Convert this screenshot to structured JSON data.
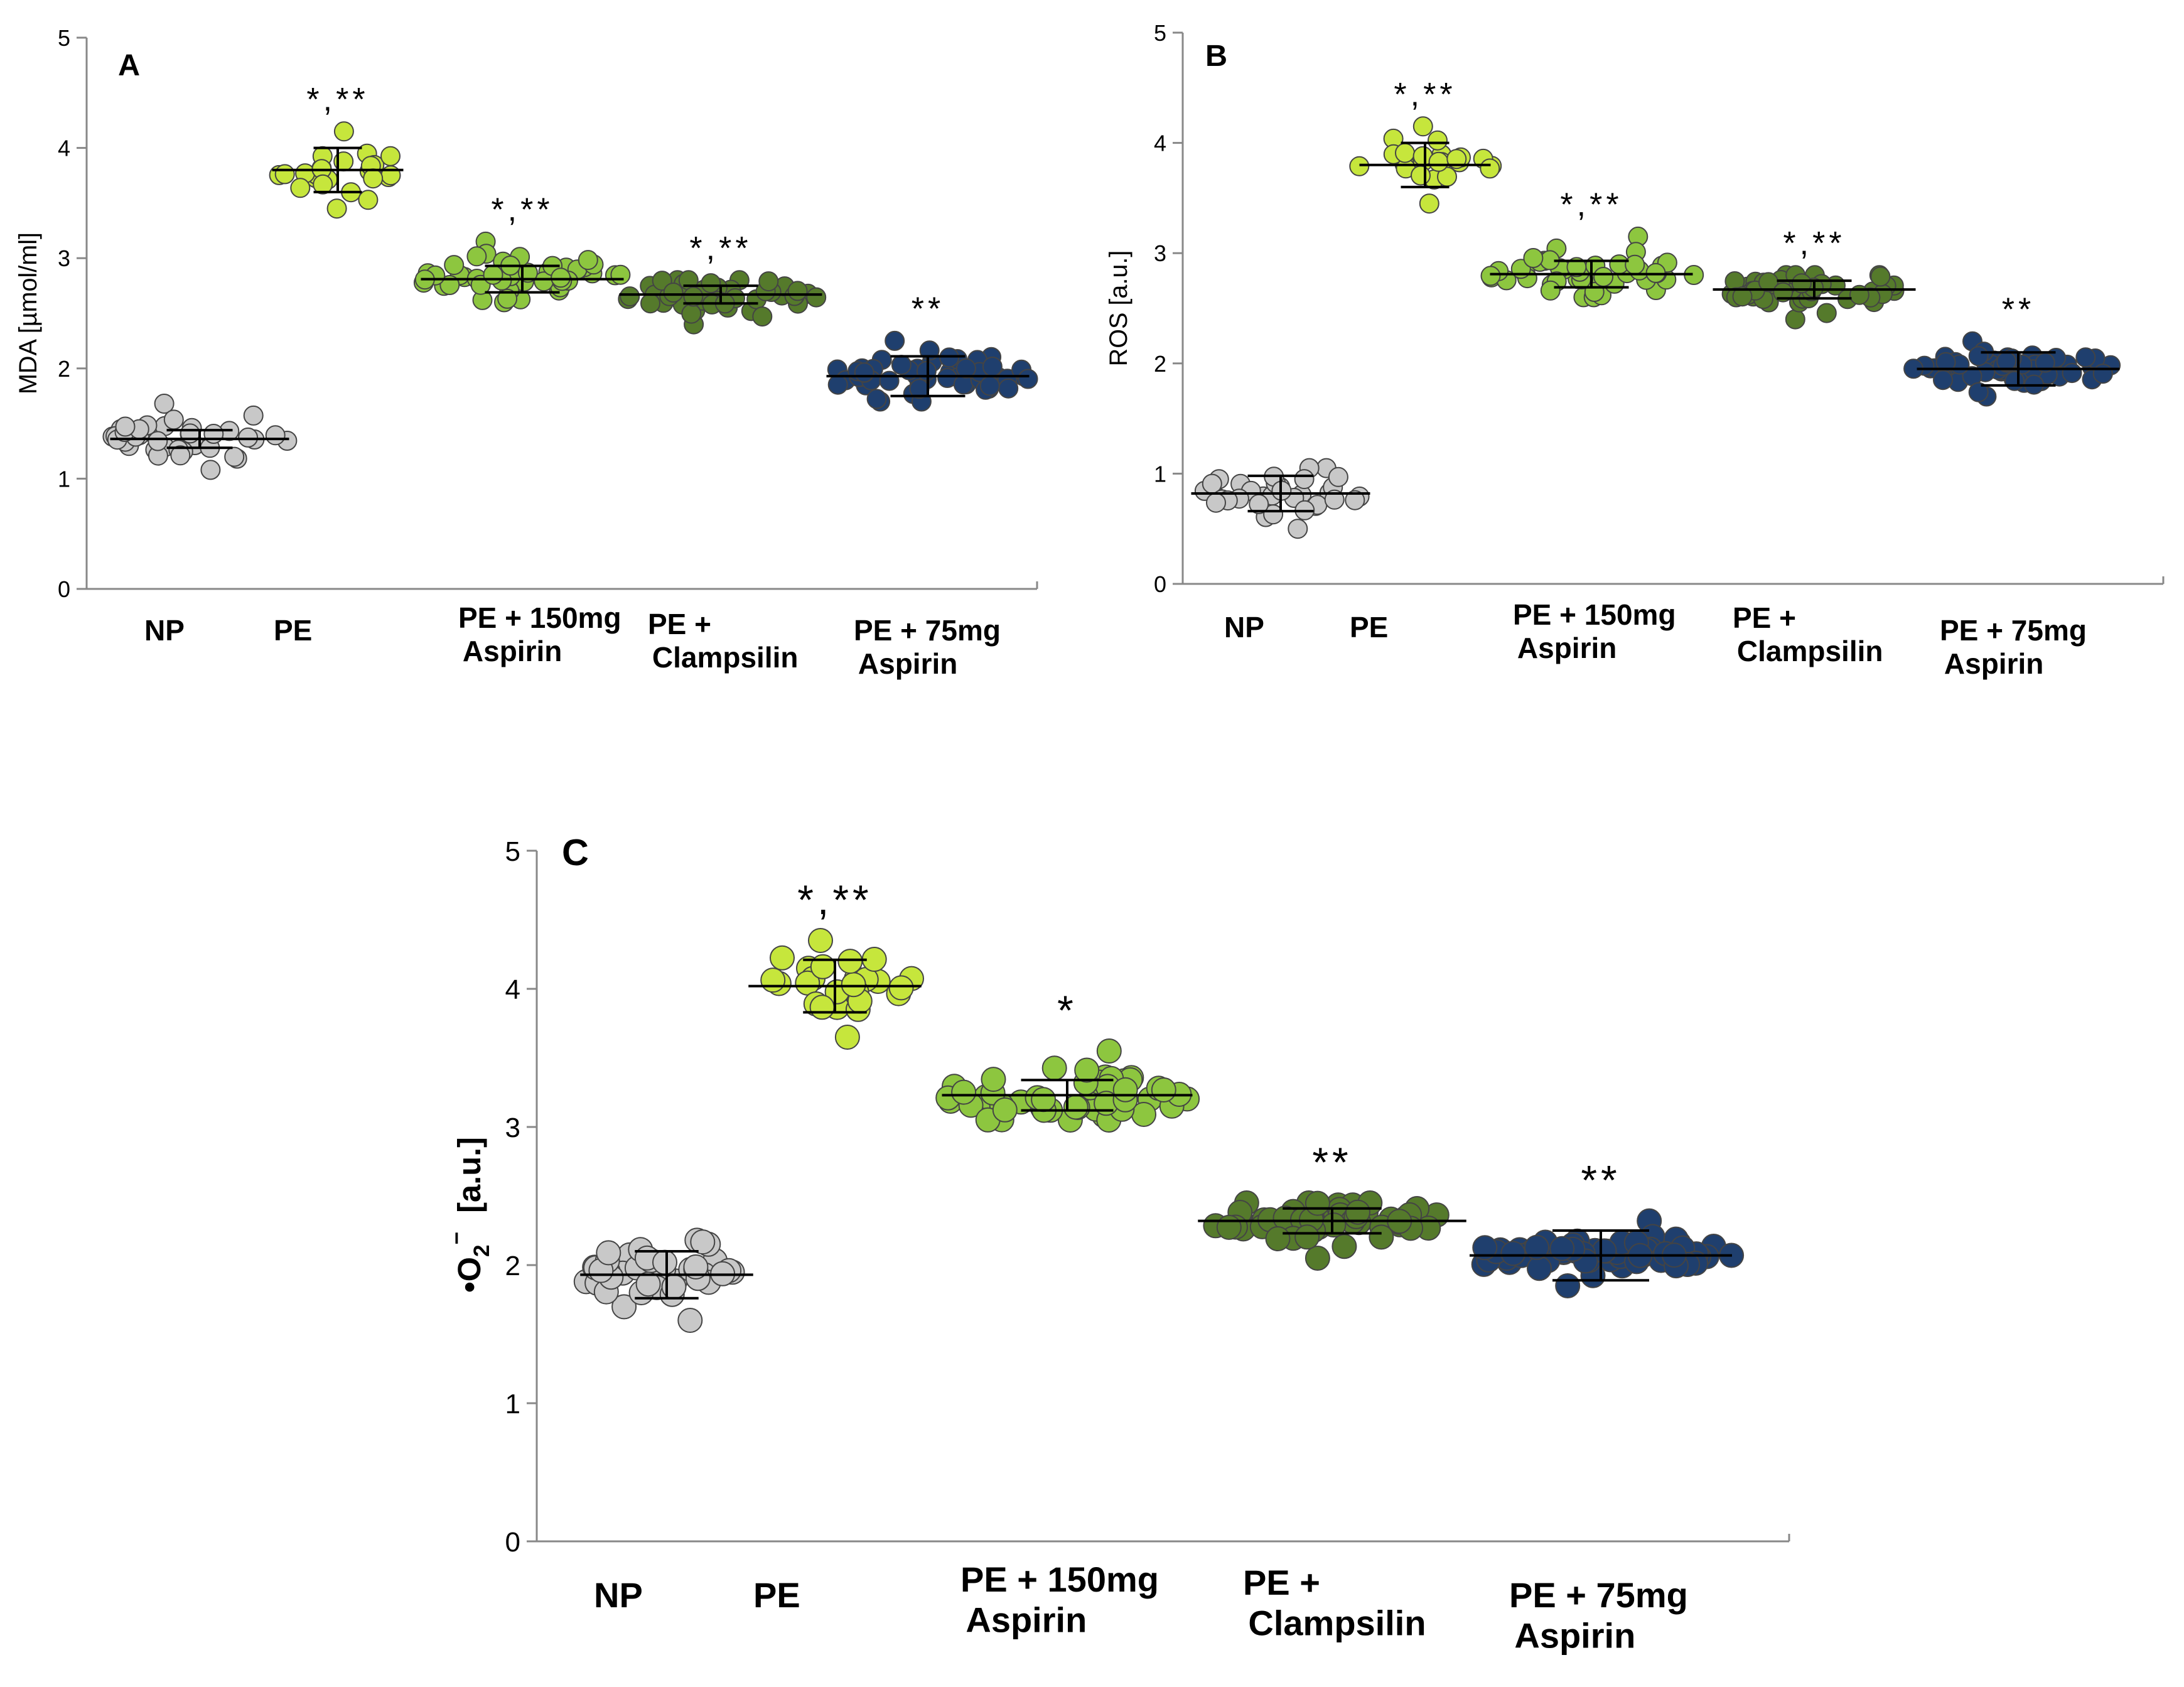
{
  "colors": {
    "NP": "#c8c8c8",
    "PE": "#c6e63c",
    "PE150": "#8dc63f",
    "Clamp": "#557a2b",
    "PE75": "#1f3f6e",
    "edge": "#444444"
  },
  "chart_data": [
    {
      "type": "scatter",
      "panel_label": "A",
      "ylabel": "MDA [µmol/ml]",
      "ylim": [
        0,
        5
      ],
      "yticks": [
        "0",
        "1",
        "2",
        "3",
        "4",
        "5"
      ],
      "grid": false,
      "categories": [
        {
          "line1": "NP",
          "line2": ""
        },
        {
          "line1": "PE",
          "line2": ""
        },
        {
          "line1": "PE + 150mg",
          "line2": "Aspirin"
        },
        {
          "line1": "PE +",
          "line2": "Clampsilin"
        },
        {
          "line1": "PE + 75mg",
          "line2": "Aspirin"
        }
      ],
      "series": [
        {
          "group": "NP",
          "mean": 1.36,
          "sd": 0.08,
          "n": 40,
          "min": 1.08,
          "max": 1.68,
          "significance": ""
        },
        {
          "group": "PE",
          "mean": 3.8,
          "sd": 0.2,
          "n": 24,
          "min": 3.45,
          "max": 4.15,
          "significance": "*,**"
        },
        {
          "group": "PE + 150mg Aspirin",
          "mean": 2.81,
          "sd": 0.12,
          "n": 45,
          "min": 2.6,
          "max": 3.15,
          "significance": "*,**"
        },
        {
          "group": "PE + Clampsilin",
          "mean": 2.67,
          "sd": 0.08,
          "n": 45,
          "min": 2.4,
          "max": 2.8,
          "significance": "*,**"
        },
        {
          "group": "PE + 75mg Aspirin",
          "mean": 1.93,
          "sd": 0.18,
          "n": 55,
          "min": 1.7,
          "max": 2.25,
          "significance": "**"
        }
      ]
    },
    {
      "type": "scatter",
      "panel_label": "B",
      "ylabel": "ROS [a.u.]",
      "ylim": [
        0,
        5
      ],
      "yticks": [
        "0",
        "1",
        "2",
        "3",
        "4",
        "5"
      ],
      "grid": false,
      "categories": [
        {
          "line1": "NP",
          "line2": ""
        },
        {
          "line1": "PE",
          "line2": ""
        },
        {
          "line1": "PE + 150mg",
          "line2": "Aspirin"
        },
        {
          "line1": "PE +",
          "line2": "Clampsilin"
        },
        {
          "line1": "PE + 75mg",
          "line2": "Aspirin"
        }
      ],
      "series": [
        {
          "group": "NP",
          "mean": 0.82,
          "sd": 0.16,
          "n": 34,
          "min": 0.5,
          "max": 1.05,
          "significance": ""
        },
        {
          "group": "PE",
          "mean": 3.8,
          "sd": 0.2,
          "n": 24,
          "min": 3.45,
          "max": 4.15,
          "significance": "*,**"
        },
        {
          "group": "PE + 150mg Aspirin",
          "mean": 2.81,
          "sd": 0.12,
          "n": 45,
          "min": 2.6,
          "max": 3.15,
          "significance": "*,**"
        },
        {
          "group": "PE + Clampsilin",
          "mean": 2.67,
          "sd": 0.08,
          "n": 45,
          "min": 2.4,
          "max": 2.8,
          "significance": "*,**"
        },
        {
          "group": "PE + 75mg Aspirin",
          "mean": 1.95,
          "sd": 0.15,
          "n": 55,
          "min": 1.7,
          "max": 2.2,
          "significance": "**"
        }
      ]
    },
    {
      "type": "scatter",
      "panel_label": "C",
      "ylabel_main": "•O",
      "ylabel_sub": "2",
      "ylabel_sup": "−",
      "ylabel_unit": "[a.u.]",
      "ylim": [
        0,
        5
      ],
      "yticks": [
        "0",
        "1",
        "2",
        "3",
        "4",
        "5"
      ],
      "grid": false,
      "categories": [
        {
          "line1": "NP",
          "line2": ""
        },
        {
          "line1": "PE",
          "line2": ""
        },
        {
          "line1": "PE + 150mg",
          "line2": "Aspirin"
        },
        {
          "line1": "PE +",
          "line2": "Clampsilin"
        },
        {
          "line1": "PE + 75mg",
          "line2": "Aspirin"
        }
      ],
      "series": [
        {
          "group": "NP",
          "mean": 1.93,
          "sd": 0.17,
          "n": 40,
          "min": 1.6,
          "max": 2.18,
          "significance": ""
        },
        {
          "group": "PE",
          "mean": 4.02,
          "sd": 0.19,
          "n": 26,
          "min": 3.65,
          "max": 4.35,
          "significance": "*,**"
        },
        {
          "group": "PE + 150mg Aspirin",
          "mean": 3.23,
          "sd": 0.11,
          "n": 50,
          "min": 3.05,
          "max": 3.55,
          "significance": "*"
        },
        {
          "group": "PE + Clampsilin",
          "mean": 2.32,
          "sd": 0.09,
          "n": 50,
          "min": 2.05,
          "max": 2.45,
          "significance": "**"
        },
        {
          "group": "PE + 75mg Aspirin",
          "mean": 2.07,
          "sd": 0.18,
          "n": 60,
          "min": 1.85,
          "max": 2.32,
          "significance": "**"
        }
      ]
    }
  ]
}
